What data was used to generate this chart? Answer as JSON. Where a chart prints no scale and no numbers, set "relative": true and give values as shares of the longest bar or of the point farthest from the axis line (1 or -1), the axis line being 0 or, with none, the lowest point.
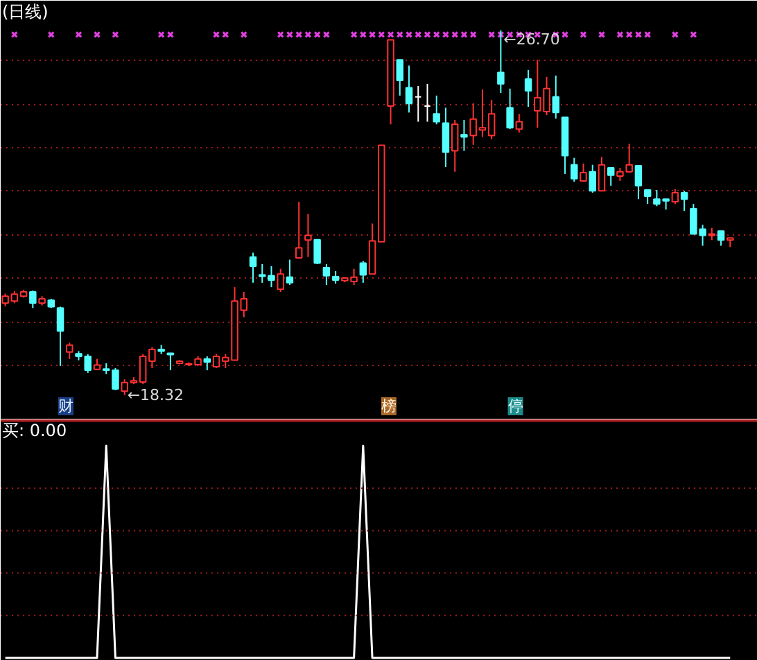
{
  "chart_data": [
    {
      "type": "candlestick",
      "title": "(日线)",
      "tick_labels": false,
      "grid": "y",
      "categories": [
        null,
        null,
        null,
        null,
        null,
        null,
        null,
        null,
        null,
        null,
        null,
        null,
        null,
        null,
        null,
        null,
        null,
        null,
        null,
        null,
        null,
        null,
        null,
        null,
        null,
        null,
        null,
        null,
        null,
        null,
        null,
        null,
        null,
        null,
        null,
        null,
        null,
        null,
        null,
        null,
        null,
        null,
        null,
        null,
        null,
        null,
        null,
        null,
        null,
        null,
        null,
        null,
        null,
        null,
        null,
        null,
        null,
        null,
        null,
        null,
        null,
        null,
        null,
        null,
        null,
        null,
        null,
        null,
        null,
        null,
        null,
        null,
        null,
        null,
        null,
        null,
        null,
        null,
        null,
        null
      ],
      "yticks": [
        {
          "value": 19,
          "label": null
        },
        {
          "value": 20,
          "label": null
        },
        {
          "value": 21,
          "label": null
        },
        {
          "value": 22,
          "label": null
        },
        {
          "value": 23,
          "label": null
        },
        {
          "value": 24,
          "label": null
        },
        {
          "value": 25,
          "label": null
        },
        {
          "value": 26,
          "label": null
        }
      ],
      "ohlc": [
        [
          20.43,
          20.65,
          20.36,
          20.59
        ],
        [
          20.48,
          20.71,
          20.43,
          20.64
        ],
        [
          20.59,
          20.74,
          20.56,
          20.69
        ],
        [
          20.69,
          20.72,
          20.32,
          20.43
        ],
        [
          20.43,
          20.59,
          20.38,
          20.53
        ],
        [
          20.5,
          20.53,
          20.32,
          20.35
        ],
        [
          20.32,
          20.35,
          18.99,
          19.79
        ],
        [
          19.31,
          19.52,
          19.15,
          19.47
        ],
        [
          19.27,
          19.33,
          19.12,
          19.21
        ],
        [
          19.21,
          19.26,
          18.83,
          18.89
        ],
        [
          18.91,
          19.15,
          18.89,
          19.01
        ],
        [
          18.92,
          19.05,
          18.8,
          18.89
        ],
        [
          18.89,
          18.94,
          18.43,
          18.46
        ],
        [
          18.41,
          18.68,
          18.32,
          18.61
        ],
        [
          18.61,
          18.73,
          18.57,
          18.65
        ],
        [
          18.62,
          19.26,
          18.57,
          19.21
        ],
        [
          19.1,
          19.42,
          18.94,
          19.37
        ],
        [
          19.37,
          19.47,
          19.26,
          19.33
        ],
        [
          19.28,
          19.28,
          18.89,
          19.25
        ],
        [
          19.05,
          19.12,
          19.03,
          19.1
        ],
        [
          19.02,
          19.07,
          18.99,
          19.04
        ],
        [
          19.02,
          19.21,
          18.99,
          19.15
        ],
        [
          19.15,
          19.21,
          18.89,
          19.08
        ],
        [
          18.97,
          19.26,
          18.94,
          19.21
        ],
        [
          19.1,
          19.26,
          18.94,
          19.18
        ],
        [
          19.12,
          20.8,
          19.12,
          20.48
        ],
        [
          20.27,
          20.69,
          20.11,
          20.53
        ],
        [
          21.49,
          21.59,
          20.9,
          21.28
        ],
        [
          21.08,
          21.33,
          20.9,
          21.05
        ],
        [
          21.06,
          21.28,
          20.8,
          20.96
        ],
        [
          20.75,
          21.22,
          20.69,
          21.1
        ],
        [
          21.03,
          21.43,
          20.85,
          20.9
        ],
        [
          21.47,
          22.76,
          21.47,
          21.7
        ],
        [
          21.88,
          22.48,
          21.49,
          21.99
        ],
        [
          21.89,
          21.89,
          21.33,
          21.35
        ],
        [
          21.25,
          21.33,
          20.85,
          21.06
        ],
        [
          21.04,
          21.17,
          20.88,
          20.96
        ],
        [
          20.95,
          21.03,
          20.91,
          21.01
        ],
        [
          20.93,
          21.22,
          20.85,
          21.03
        ],
        [
          21.35,
          21.4,
          20.9,
          21.08
        ],
        [
          21.1,
          22.26,
          21.1,
          21.86
        ],
        [
          21.84,
          24.06,
          21.84,
          24.06
        ],
        [
          24.96,
          26.48,
          24.54,
          26.48
        ],
        [
          26.02,
          26.02,
          25.2,
          25.55
        ],
        [
          25.38,
          25.89,
          24.81,
          25.02
        ],
        [
          25.17,
          25.42,
          24.6,
          25.17
        ],
        [
          24.96,
          25.47,
          24.6,
          24.96
        ],
        [
          24.78,
          25.2,
          24.54,
          24.6
        ],
        [
          24.57,
          24.92,
          23.56,
          23.9
        ],
        [
          23.93,
          24.64,
          23.45,
          24.54
        ],
        [
          24.3,
          24.64,
          23.93,
          24.25
        ],
        [
          24.28,
          25.02,
          24.07,
          24.66
        ],
        [
          24.41,
          25.34,
          24.25,
          24.46
        ],
        [
          24.28,
          25.1,
          24.2,
          24.78
        ],
        [
          25.73,
          26.7,
          25.26,
          25.47
        ],
        [
          24.92,
          25.36,
          24.43,
          24.46
        ],
        [
          24.43,
          24.78,
          24.35,
          24.6
        ],
        [
          25.58,
          25.79,
          24.94,
          25.31
        ],
        [
          24.85,
          26.02,
          24.46,
          25.15
        ],
        [
          24.83,
          25.63,
          24.75,
          25.36
        ],
        [
          25.17,
          25.66,
          24.67,
          24.81
        ],
        [
          24.7,
          24.7,
          23.4,
          23.82
        ],
        [
          23.61,
          23.77,
          23.22,
          23.29
        ],
        [
          23.24,
          23.64,
          23.22,
          23.43
        ],
        [
          23.45,
          23.61,
          22.97,
          23.01
        ],
        [
          23.01,
          23.79,
          23.01,
          23.61
        ],
        [
          23.54,
          23.54,
          23.13,
          23.37
        ],
        [
          23.35,
          23.54,
          23.24,
          23.45
        ],
        [
          23.45,
          24.09,
          23.43,
          23.61
        ],
        [
          23.59,
          23.59,
          22.82,
          23.13
        ],
        [
          23.03,
          23.03,
          22.71,
          22.89
        ],
        [
          22.82,
          23.03,
          22.66,
          22.71
        ],
        [
          22.82,
          22.82,
          22.58,
          22.78
        ],
        [
          22.76,
          23.05,
          22.71,
          22.97
        ],
        [
          22.97,
          23.01,
          22.55,
          22.82
        ],
        [
          22.6,
          22.71,
          22.02,
          22.02
        ],
        [
          22.13,
          22.23,
          21.75,
          21.99
        ],
        [
          21.99,
          22.16,
          21.88,
          22.02
        ],
        [
          22.09,
          22.09,
          21.75,
          21.88
        ],
        [
          21.88,
          21.93,
          21.72,
          21.93
        ]
      ],
      "colors": [
        "#ff3232",
        "#ff3232",
        "#ff3232",
        "#54ffff",
        "#ff3232",
        "#54ffff",
        "#54ffff",
        "#ff3232",
        "#54ffff",
        "#54ffff",
        "#ff3232",
        "#54ffff",
        "#54ffff",
        "#ff3232",
        "#ff3232",
        "#ff3232",
        "#ff3232",
        "#54ffff",
        "#54ffff",
        "#ff3232",
        "#ff3232",
        "#ff3232",
        "#54ffff",
        "#ff3232",
        "#ff3232",
        "#ff3232",
        "#ff3232",
        "#54ffff",
        "#54ffff",
        "#54ffff",
        "#ff3232",
        "#54ffff",
        "#ff3232",
        "#ff3232",
        "#54ffff",
        "#54ffff",
        "#54ffff",
        "#ff3232",
        "#ff3232",
        "#54ffff",
        "#ff3232",
        "#ff3232",
        "#ff3232",
        "#54ffff",
        "#54ffff",
        "#ffffff",
        "#ffffff",
        "#54ffff",
        "#54ffff",
        "#ff3232",
        "#54ffff",
        "#ff3232",
        "#ff3232",
        "#ff3232",
        "#54ffff",
        "#54ffff",
        "#ff3232",
        "#54ffff",
        "#ff3232",
        "#ff3232",
        "#54ffff",
        "#54ffff",
        "#54ffff",
        "#ff3232",
        "#54ffff",
        "#ff3232",
        "#54ffff",
        "#ff3232",
        "#ff3232",
        "#54ffff",
        "#54ffff",
        "#54ffff",
        "#54ffff",
        "#ff3232",
        "#54ffff",
        "#54ffff",
        "#54ffff",
        "#ff3232",
        "#54ffff",
        "#ff3232"
      ],
      "series": [
        {
          "type": "scatter",
          "marker": "cross",
          "color": "#e040e0",
          "values": [
            null,
            26.6,
            null,
            null,
            null,
            26.6,
            null,
            null,
            26.6,
            null,
            26.6,
            null,
            26.6,
            null,
            null,
            null,
            null,
            26.6,
            26.6,
            null,
            null,
            null,
            null,
            26.6,
            26.6,
            null,
            26.6,
            null,
            null,
            null,
            26.6,
            26.6,
            26.6,
            26.6,
            26.6,
            26.6,
            null,
            null,
            26.6,
            26.6,
            26.6,
            26.6,
            26.6,
            26.6,
            26.6,
            26.6,
            26.6,
            26.6,
            26.6,
            26.6,
            26.6,
            26.6,
            null,
            26.6,
            26.6,
            26.6,
            26.6,
            26.6,
            26.6,
            null,
            26.6,
            26.6,
            null,
            26.6,
            null,
            26.6,
            null,
            26.6,
            26.6,
            26.6,
            26.6,
            null,
            null,
            26.6,
            null,
            26.6,
            null,
            null,
            null,
            null
          ]
        }
      ],
      "annotations": [
        "←26.70",
        "←18.32",
        "财",
        "榜",
        "停"
      ]
    },
    {
      "type": "line",
      "title": "买: 0.00",
      "relative": true,
      "tick_labels": false,
      "categories": [
        null,
        null,
        null,
        null,
        null,
        null,
        null,
        null,
        null,
        null,
        null,
        null,
        null,
        null,
        null,
        null,
        null,
        null,
        null,
        null,
        null,
        null,
        null,
        null,
        null,
        null,
        null,
        null,
        null,
        null,
        null,
        null,
        null,
        null,
        null,
        null,
        null,
        null,
        null,
        null,
        null,
        null,
        null,
        null,
        null,
        null,
        null,
        null,
        null,
        null,
        null,
        null,
        null,
        null,
        null,
        null,
        null,
        null,
        null,
        null,
        null,
        null,
        null,
        null,
        null,
        null,
        null,
        null,
        null,
        null,
        null,
        null,
        null,
        null,
        null,
        null,
        null,
        null,
        null,
        null
      ],
      "series": [
        {
          "color": "#ffffff",
          "values": [
            0,
            0,
            0,
            0,
            0,
            0,
            0,
            0,
            0,
            0,
            0,
            1,
            0,
            0,
            0,
            0,
            0,
            0,
            0,
            0,
            0,
            0,
            0,
            0,
            0,
            0,
            0,
            0,
            0,
            0,
            0,
            0,
            0,
            0,
            0,
            0,
            0,
            0,
            0,
            1,
            0,
            0,
            0,
            0,
            0,
            0,
            0,
            0,
            0,
            0,
            0,
            0,
            0,
            0,
            0,
            0,
            0,
            0,
            0,
            0,
            0,
            0,
            0,
            0,
            0,
            0,
            0,
            0,
            0,
            0,
            0,
            0,
            0,
            0,
            0,
            0,
            0,
            0,
            0,
            0
          ]
        }
      ],
      "ref_lines": [
        {
          "axis": "y",
          "value": 0.2,
          "color": "#a01c1c",
          "line_style": "dotted"
        },
        {
          "axis": "y",
          "value": 0.4,
          "color": "#a01c1c",
          "line_style": "dotted"
        },
        {
          "axis": "y",
          "value": 0.6,
          "color": "#a01c1c",
          "line_style": "dotted"
        },
        {
          "axis": "y",
          "value": 0.8,
          "color": "#a01c1c",
          "line_style": "dotted"
        }
      ]
    }
  ]
}
